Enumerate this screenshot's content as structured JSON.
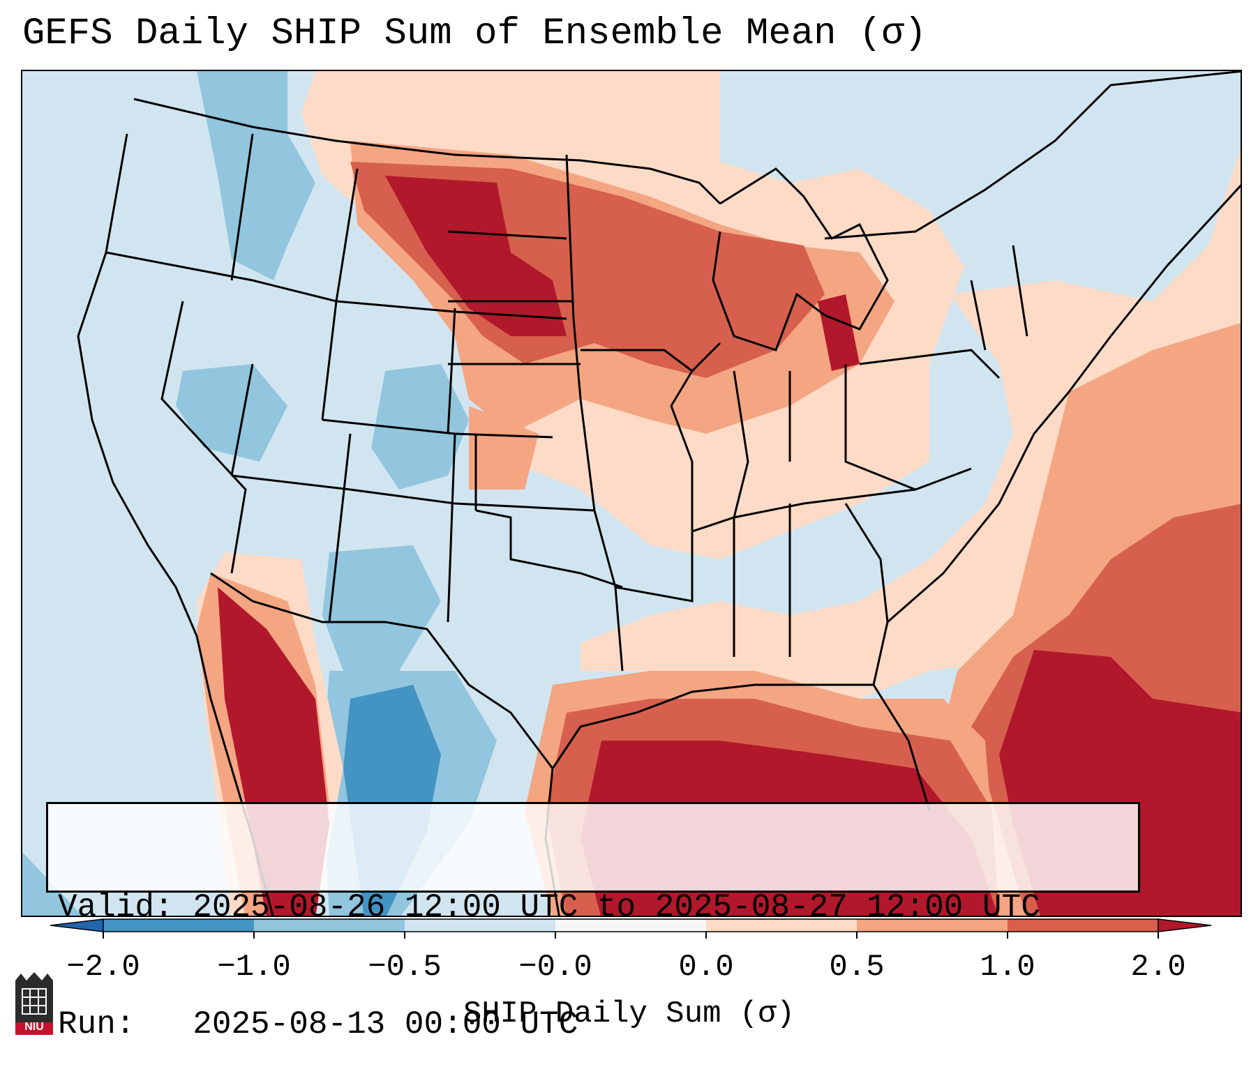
{
  "title": "GEFS Daily SHIP Sum of Ensemble Mean (σ)",
  "info": {
    "valid_line": "Valid: 2025-08-26 12:00 UTC to 2025-08-27 12:00 UTC",
    "run_line": "Run:   2025-08-13 00:00 UTC"
  },
  "colorbar": {
    "label": "SHIP Daily Sum (σ)",
    "ticks": [
      "−2.0",
      "−1.0",
      "−0.5",
      "−0.0",
      "0.0",
      "0.5",
      "1.0",
      "2.0"
    ],
    "colors": [
      "#4393c3",
      "#92c5de",
      "#d1e5f0",
      "#f7f7f7",
      "#fddbc7",
      "#f4a582",
      "#d6604d"
    ],
    "under_color": "#2166ac",
    "over_color": "#b2182b"
  },
  "logo": {
    "text": "NIU",
    "icon": "niu-logo-icon"
  },
  "palette": {
    "very_low": "#4393c3",
    "low": "#92c5de",
    "slightly_low": "#d1e5f0",
    "slightly_high": "#fddbc7",
    "high": "#f4a582",
    "higher": "#d6604d",
    "very_high": "#b2182b"
  }
}
